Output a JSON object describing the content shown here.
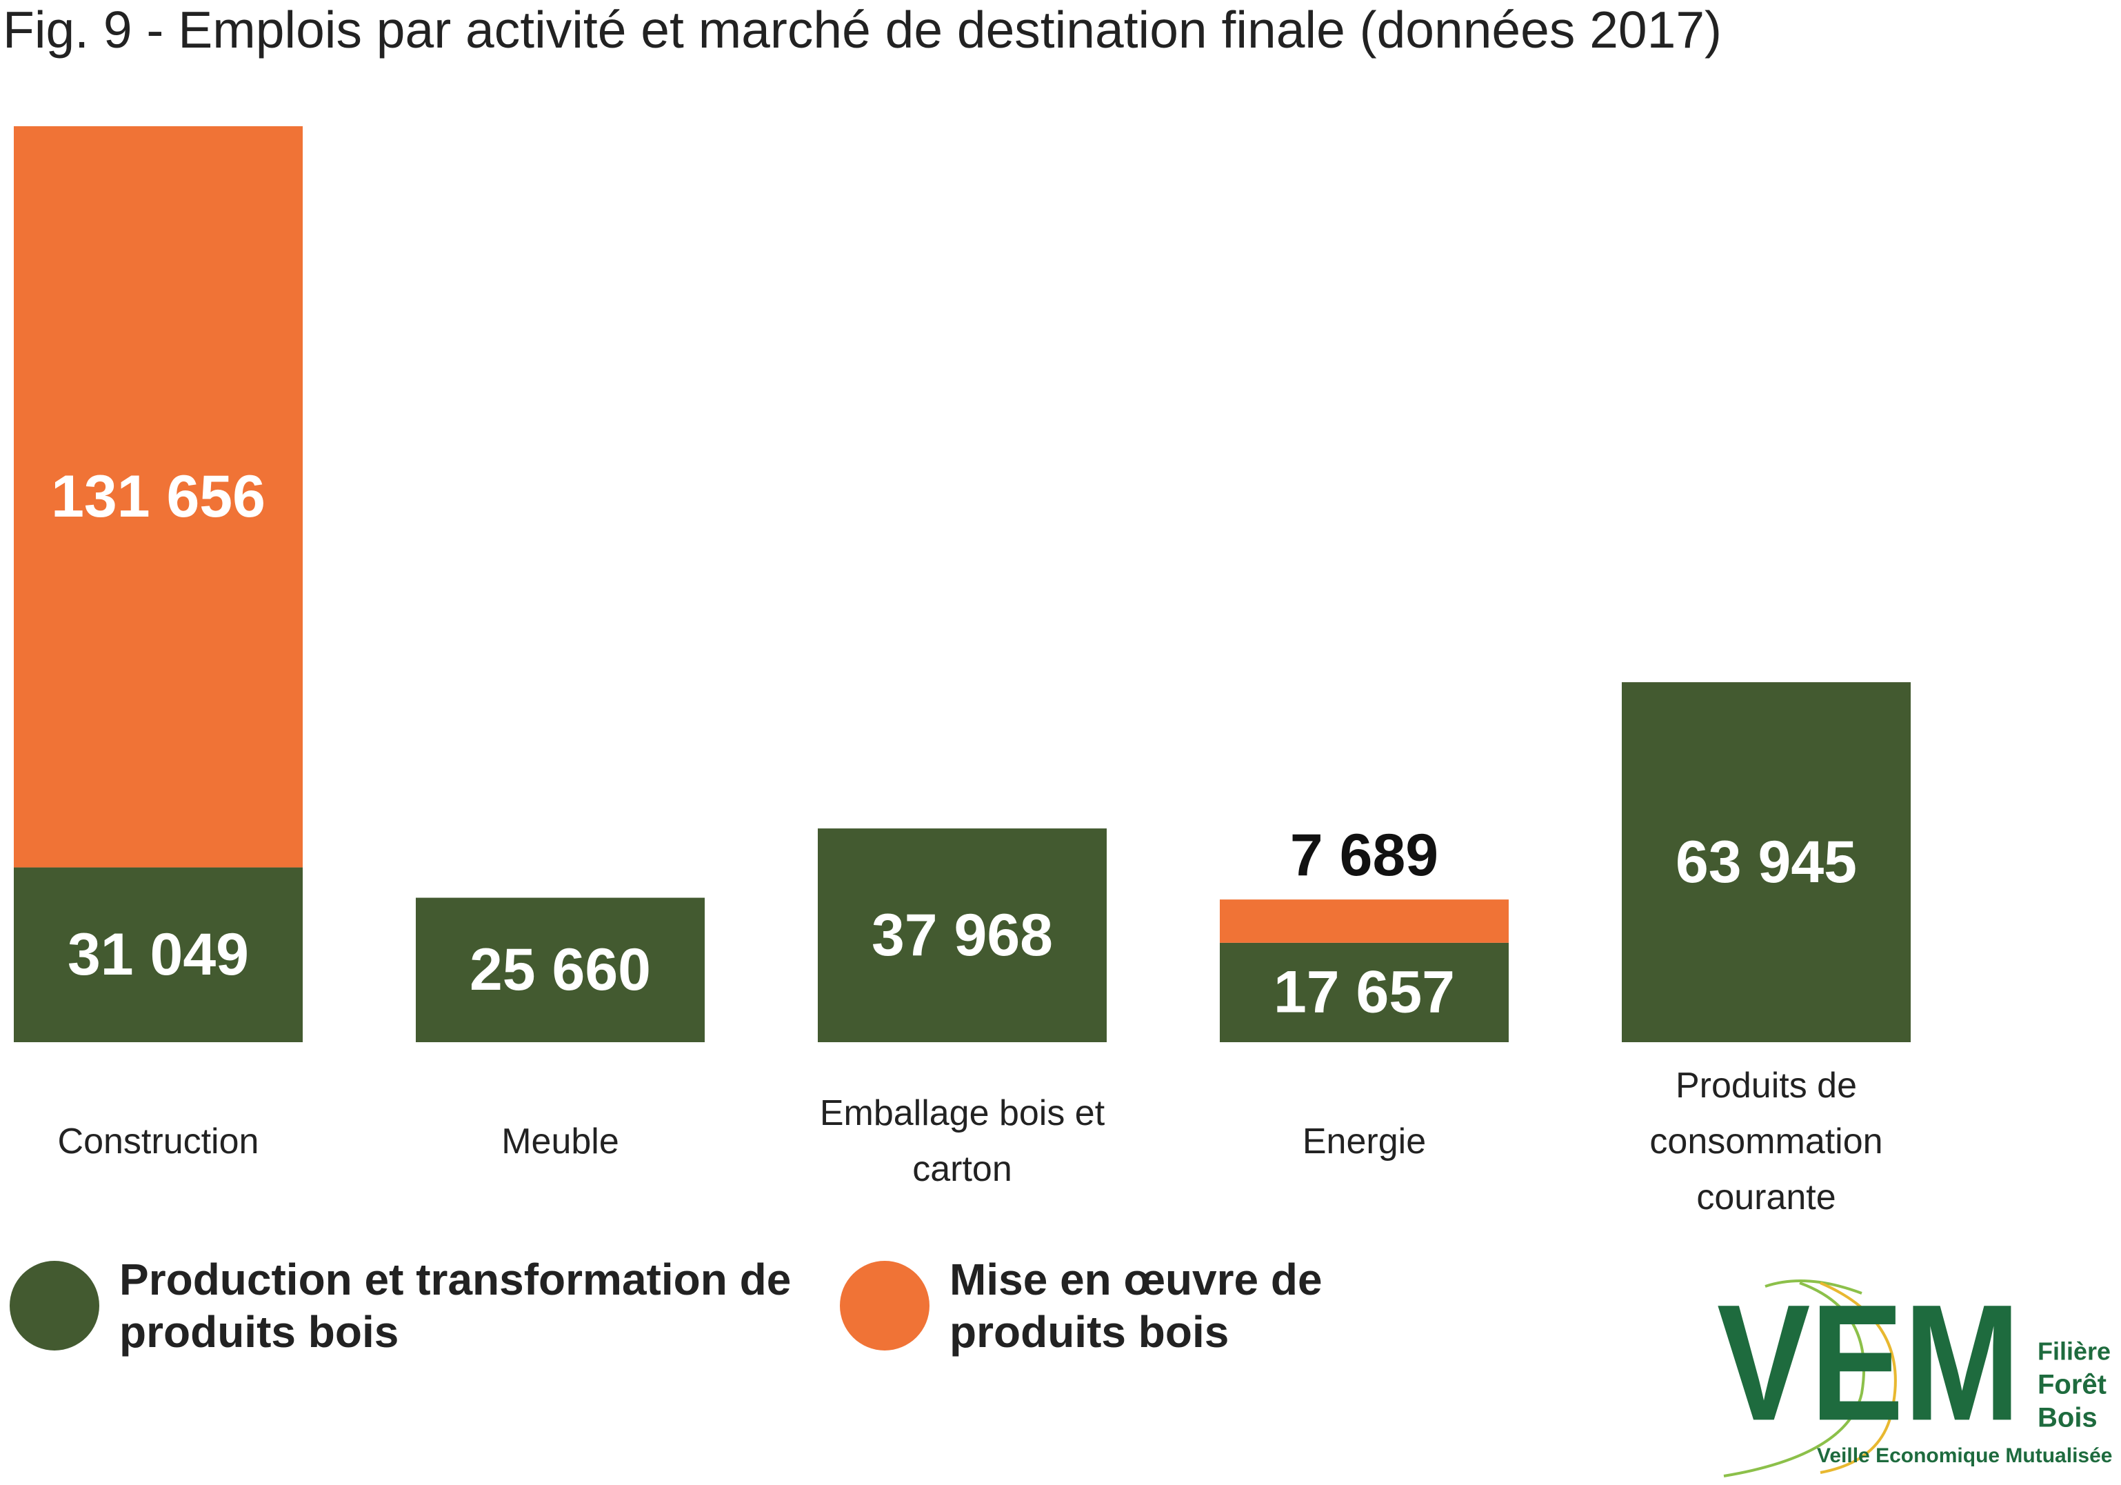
{
  "chart_data": {
    "type": "stacked-bar",
    "title": "Fig. 9 - Emplois par activité et marché de destination finale (données 2017)",
    "categories": [
      "Construction",
      "Meuble",
      "Emballage bois et carton",
      "Energie",
      "Produits de consommation courante"
    ],
    "series": [
      {
        "name": "Production et transformation de produits bois",
        "color": "#435a30",
        "values": [
          31049,
          25660,
          37968,
          17657,
          63945
        ],
        "value_labels": [
          "31 049",
          "25 660",
          "37 968",
          "17 657",
          "63 945"
        ]
      },
      {
        "name": "Mise en œuvre de produits bois",
        "color": "#f07336",
        "values": [
          131656,
          null,
          null,
          7689,
          null
        ],
        "value_labels": [
          "131 656",
          null,
          null,
          "7 689",
          null
        ]
      }
    ]
  },
  "logo": {
    "mark": "VEM",
    "lines": [
      "Filière",
      "Forêt",
      "Bois"
    ],
    "tagline": "Veille Economique Mutualisée"
  }
}
